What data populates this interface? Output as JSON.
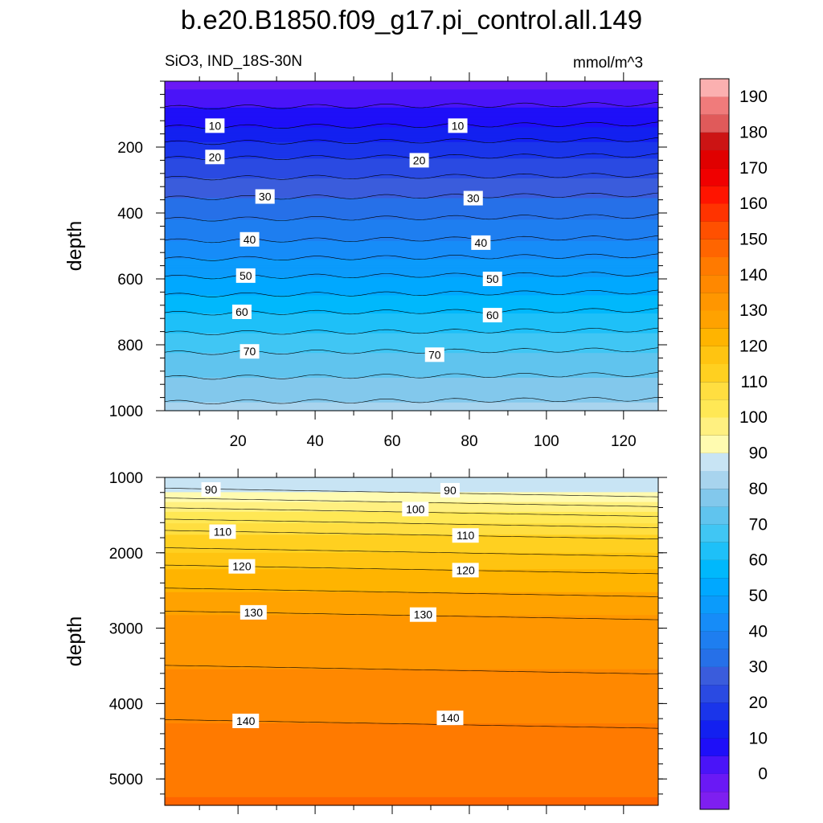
{
  "title": "b.e20.B1850.f09_g17.pi_control.all.149",
  "subtitle_left": "SiO3, IND_18S-30N",
  "subtitle_right": "mmol/m^3",
  "colorbar": {
    "labels": [
      "0",
      "10",
      "20",
      "30",
      "40",
      "50",
      "60",
      "70",
      "80",
      "90",
      "100",
      "110",
      "120",
      "130",
      "140",
      "150",
      "160",
      "170",
      "180",
      "190"
    ],
    "colors": [
      "#7e1ff0",
      "#6a19f5",
      "#4a14f8",
      "#1e0ff8",
      "#1320f0",
      "#1a35ea",
      "#2a4ae2",
      "#3a5cdc",
      "#2670e8",
      "#1e7ef0",
      "#168cf8",
      "#0b9bfb",
      "#00a8ff",
      "#00b8fc",
      "#1ec0f8",
      "#40c6f4",
      "#60c4ee",
      "#82c8ec",
      "#a8d4ee",
      "#c8e4f4",
      "#fffbb0",
      "#fff080",
      "#ffe855",
      "#ffde40",
      "#ffd020",
      "#ffc411",
      "#ffb400",
      "#ffa200",
      "#ff9600",
      "#ff8800",
      "#ff7a00",
      "#ff6500",
      "#ff5000",
      "#ff3300",
      "#ff1400",
      "#f00000",
      "#e00000",
      "#cc1414",
      "#e05a5a",
      "#f07b7b",
      "#fbb0b0"
    ]
  },
  "chart_data": [
    {
      "type": "contour",
      "ylabel": "depth",
      "xlim": [
        1,
        129
      ],
      "ylim": [
        0,
        1000
      ],
      "y_inverted": true,
      "x_ticks": [
        20,
        40,
        60,
        80,
        100,
        120
      ],
      "y_ticks": [
        200,
        400,
        600,
        800,
        1000
      ],
      "contour_levels": [
        5,
        10,
        15,
        20,
        25,
        30,
        35,
        40,
        45,
        50,
        55,
        60,
        65,
        70,
        75,
        80
      ],
      "labeled_contours": [
        {
          "text": "10",
          "x": 14,
          "y": 135
        },
        {
          "text": "10",
          "x": 77,
          "y": 135
        },
        {
          "text": "20",
          "x": 14,
          "y": 230
        },
        {
          "text": "20",
          "x": 67,
          "y": 240
        },
        {
          "text": "30",
          "x": 27,
          "y": 350
        },
        {
          "text": "30",
          "x": 81,
          "y": 355
        },
        {
          "text": "40",
          "x": 23,
          "y": 480
        },
        {
          "text": "40",
          "x": 83,
          "y": 490
        },
        {
          "text": "50",
          "x": 22,
          "y": 590
        },
        {
          "text": "50",
          "x": 86,
          "y": 600
        },
        {
          "text": "60",
          "x": 21,
          "y": 700
        },
        {
          "text": "60",
          "x": 86,
          "y": 710
        },
        {
          "text": "70",
          "x": 23,
          "y": 820
        },
        {
          "text": "70",
          "x": 71,
          "y": 830
        }
      ]
    },
    {
      "type": "contour",
      "ylabel": "depth",
      "xlim": [
        1,
        129
      ],
      "ylim": [
        1000,
        5350
      ],
      "y_inverted": true,
      "x_ticks": [
        20,
        40,
        60,
        80,
        100,
        120
      ],
      "y_ticks": [
        1000,
        2000,
        3000,
        4000,
        5000
      ],
      "contour_levels": [
        85,
        90,
        95,
        100,
        105,
        110,
        115,
        120,
        125,
        130,
        135,
        140
      ],
      "labeled_contours": [
        {
          "text": "90",
          "x": 13,
          "y": 1160
        },
        {
          "text": "90",
          "x": 75,
          "y": 1170
        },
        {
          "text": "100",
          "x": 66,
          "y": 1420
        },
        {
          "text": "110",
          "x": 16,
          "y": 1720
        },
        {
          "text": "110",
          "x": 79,
          "y": 1770
        },
        {
          "text": "120",
          "x": 21,
          "y": 2180
        },
        {
          "text": "120",
          "x": 79,
          "y": 2230
        },
        {
          "text": "130",
          "x": 24,
          "y": 2790
        },
        {
          "text": "130",
          "x": 68,
          "y": 2820
        },
        {
          "text": "140",
          "x": 22,
          "y": 4230
        },
        {
          "text": "140",
          "x": 75,
          "y": 4190
        }
      ]
    }
  ]
}
